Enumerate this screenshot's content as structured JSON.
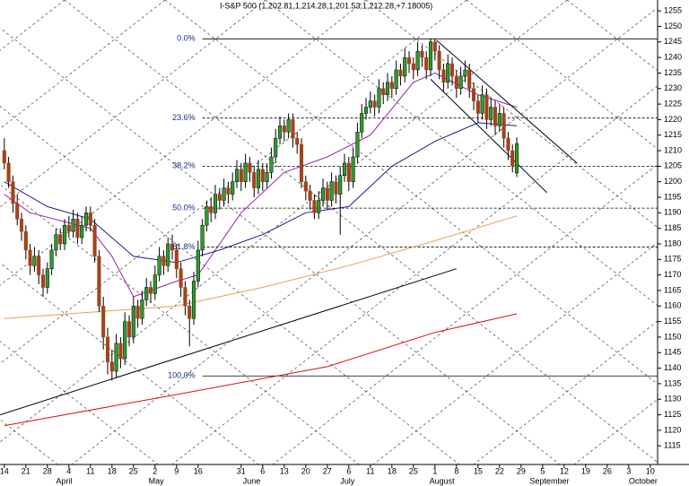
{
  "chart_data": {
    "type": "candlestick",
    "title": "I-S&P 500 (1,202.81,1,214.28,1,201.53,1,212.28,+7.18005)",
    "up_color": "#2e9b2e",
    "down_color": "#a3421b",
    "xlim": [
      -1,
      151.7
    ],
    "ylim": [
      1109,
      1258.5
    ],
    "yticks": [
      1115,
      1120,
      1125,
      1130,
      1135,
      1140,
      1145,
      1150,
      1155,
      1160,
      1165,
      1170,
      1175,
      1180,
      1185,
      1190,
      1195,
      1200,
      1205,
      1210,
      1215,
      1220,
      1225,
      1230,
      1235,
      1240,
      1245,
      1250,
      1255
    ],
    "xticks": [
      {
        "value": 0,
        "label": "14"
      },
      {
        "value": 5,
        "label": "21"
      },
      {
        "value": 10,
        "label": "28"
      },
      {
        "value": 15,
        "label": "4"
      },
      {
        "value": 20,
        "label": "11"
      },
      {
        "value": 25,
        "label": "18"
      },
      {
        "value": 30,
        "label": "25"
      },
      {
        "value": 35,
        "label": "2"
      },
      {
        "value": 40,
        "label": "9"
      },
      {
        "value": 45,
        "label": "16"
      },
      {
        "value": 55,
        "label": "31"
      },
      {
        "value": 60,
        "label": "6"
      },
      {
        "value": 65,
        "label": "13"
      },
      {
        "value": 70,
        "label": "20"
      },
      {
        "value": 75,
        "label": "27"
      },
      {
        "value": 80,
        "label": "6"
      },
      {
        "value": 85,
        "label": "11"
      },
      {
        "value": 90,
        "label": "18"
      },
      {
        "value": 95,
        "label": "25"
      },
      {
        "value": 100,
        "label": "1"
      },
      {
        "value": 105,
        "label": "8"
      },
      {
        "value": 110,
        "label": "15"
      },
      {
        "value": 115,
        "label": "22"
      },
      {
        "value": 120,
        "label": "29"
      },
      {
        "value": 125,
        "label": "5"
      },
      {
        "value": 130,
        "label": "12"
      },
      {
        "value": 135,
        "label": "19"
      },
      {
        "value": 140,
        "label": "26"
      },
      {
        "value": 145,
        "label": "3"
      },
      {
        "value": 150,
        "label": "10"
      }
    ],
    "months": [
      {
        "value": 12,
        "label": "April"
      },
      {
        "value": 33.5,
        "label": "May"
      },
      {
        "value": 55.4,
        "label": "June"
      },
      {
        "value": 78,
        "label": "July"
      },
      {
        "value": 98.7,
        "label": "August"
      },
      {
        "value": 122,
        "label": "September"
      },
      {
        "value": 145,
        "label": "October"
      }
    ],
    "x": [
      0,
      1,
      2,
      3,
      4,
      5,
      6,
      7,
      8,
      9,
      10,
      11,
      12,
      13,
      14,
      15,
      16,
      17,
      18,
      19,
      20,
      21,
      22,
      23,
      24,
      25,
      26,
      27,
      28,
      29,
      30,
      31,
      32,
      33,
      34,
      35,
      36,
      37,
      38,
      39,
      40,
      41,
      42,
      43,
      44,
      45,
      46,
      47,
      48,
      49,
      50,
      51,
      52,
      53,
      54,
      55,
      56,
      57,
      58,
      59,
      60,
      61,
      62,
      63,
      64,
      65,
      66,
      67,
      68,
      69,
      70,
      71,
      72,
      73,
      74,
      75,
      76,
      77,
      78,
      79,
      80,
      81,
      82,
      83,
      84,
      85,
      86,
      87,
      88,
      89,
      90,
      91,
      92,
      93,
      94,
      95,
      96,
      97,
      98,
      99,
      100,
      101,
      102,
      103,
      104,
      105,
      106,
      107,
      108,
      109,
      110,
      111,
      112,
      113,
      114,
      115,
      116,
      117,
      118,
      119
    ],
    "ohlc": [
      [
        1210,
        1214,
        1204,
        1206
      ],
      [
        1206,
        1208,
        1198,
        1200
      ],
      [
        1200,
        1202,
        1190,
        1193
      ],
      [
        1193,
        1196,
        1186,
        1188
      ],
      [
        1188,
        1190,
        1181,
        1184
      ],
      [
        1184,
        1186,
        1175,
        1178
      ],
      [
        1178,
        1180,
        1170,
        1173
      ],
      [
        1173,
        1179,
        1171,
        1176
      ],
      [
        1176,
        1178,
        1167,
        1170
      ],
      [
        1170,
        1172,
        1163,
        1166
      ],
      [
        1166,
        1174,
        1164,
        1172
      ],
      [
        1172,
        1180,
        1170,
        1178
      ],
      [
        1178,
        1185,
        1176,
        1183
      ],
      [
        1183,
        1185,
        1178,
        1180
      ],
      [
        1180,
        1188,
        1178,
        1186
      ],
      [
        1186,
        1189,
        1182,
        1184
      ],
      [
        1184,
        1191,
        1182,
        1188
      ],
      [
        1188,
        1190,
        1180,
        1182
      ],
      [
        1182,
        1189,
        1180,
        1186
      ],
      [
        1186,
        1192,
        1184,
        1190
      ],
      [
        1190,
        1192,
        1184,
        1186
      ],
      [
        1186,
        1188,
        1174,
        1176
      ],
      [
        1176,
        1178,
        1158,
        1160
      ],
      [
        1160,
        1163,
        1146,
        1150
      ],
      [
        1150,
        1153,
        1138,
        1142
      ],
      [
        1142,
        1146,
        1136,
        1139
      ],
      [
        1139,
        1151,
        1137,
        1148
      ],
      [
        1148,
        1150,
        1140,
        1143
      ],
      [
        1143,
        1158,
        1141,
        1155
      ],
      [
        1155,
        1157,
        1147,
        1150
      ],
      [
        1150,
        1163,
        1148,
        1160
      ],
      [
        1160,
        1162,
        1153,
        1156
      ],
      [
        1156,
        1165,
        1154,
        1162
      ],
      [
        1162,
        1169,
        1160,
        1166
      ],
      [
        1166,
        1168,
        1161,
        1164
      ],
      [
        1164,
        1173,
        1162,
        1170
      ],
      [
        1170,
        1179,
        1168,
        1176
      ],
      [
        1176,
        1178,
        1170,
        1173
      ],
      [
        1173,
        1182,
        1171,
        1180
      ],
      [
        1180,
        1183,
        1175,
        1178
      ],
      [
        1178,
        1180,
        1169,
        1172
      ],
      [
        1172,
        1174,
        1163,
        1166
      ],
      [
        1166,
        1168,
        1157,
        1160
      ],
      [
        1160,
        1162,
        1147,
        1156
      ],
      [
        1156,
        1171,
        1154,
        1168
      ],
      [
        1168,
        1181,
        1166,
        1178
      ],
      [
        1178,
        1188,
        1176,
        1186
      ],
      [
        1186,
        1194,
        1184,
        1192
      ],
      [
        1192,
        1195,
        1187,
        1190
      ],
      [
        1190,
        1199,
        1188,
        1196
      ],
      [
        1196,
        1198,
        1191,
        1194
      ],
      [
        1194,
        1201,
        1192,
        1198
      ],
      [
        1198,
        1200,
        1193,
        1196
      ],
      [
        1196,
        1203,
        1194,
        1200
      ],
      [
        1200,
        1207,
        1198,
        1204
      ],
      [
        1204,
        1206,
        1197,
        1200
      ],
      [
        1200,
        1209,
        1198,
        1206
      ],
      [
        1206,
        1208,
        1200,
        1203
      ],
      [
        1203,
        1205,
        1195,
        1198
      ],
      [
        1198,
        1207,
        1196,
        1204
      ],
      [
        1204,
        1206,
        1197,
        1200
      ],
      [
        1200,
        1206,
        1198,
        1203
      ],
      [
        1203,
        1211,
        1201,
        1208
      ],
      [
        1208,
        1217,
        1206,
        1214
      ],
      [
        1214,
        1221,
        1212,
        1218
      ],
      [
        1218,
        1220,
        1213,
        1216
      ],
      [
        1216,
        1222,
        1214,
        1220
      ],
      [
        1220,
        1222,
        1211,
        1214
      ],
      [
        1214,
        1216,
        1209,
        1212
      ],
      [
        1212,
        1214,
        1198,
        1200
      ],
      [
        1200,
        1202,
        1194,
        1197
      ],
      [
        1197,
        1199,
        1191,
        1194
      ],
      [
        1194,
        1196,
        1188,
        1190
      ],
      [
        1190,
        1197,
        1188,
        1194
      ],
      [
        1194,
        1201,
        1192,
        1198
      ],
      [
        1198,
        1200,
        1191,
        1194
      ],
      [
        1194,
        1203,
        1192,
        1200
      ],
      [
        1200,
        1202,
        1193,
        1196
      ],
      [
        1196,
        1205,
        1183,
        1202
      ],
      [
        1202,
        1209,
        1200,
        1206
      ],
      [
        1206,
        1208,
        1197,
        1200
      ],
      [
        1200,
        1211,
        1198,
        1208
      ],
      [
        1208,
        1219,
        1206,
        1216
      ],
      [
        1216,
        1225,
        1214,
        1222
      ],
      [
        1222,
        1227,
        1220,
        1224
      ],
      [
        1224,
        1229,
        1222,
        1226
      ],
      [
        1226,
        1228,
        1221,
        1224
      ],
      [
        1224,
        1233,
        1222,
        1230
      ],
      [
        1230,
        1232,
        1225,
        1228
      ],
      [
        1228,
        1235,
        1226,
        1232
      ],
      [
        1232,
        1234,
        1227,
        1230
      ],
      [
        1230,
        1239,
        1228,
        1236
      ],
      [
        1236,
        1238,
        1231,
        1234
      ],
      [
        1234,
        1243,
        1232,
        1240
      ],
      [
        1240,
        1242,
        1235,
        1238
      ],
      [
        1238,
        1240,
        1233,
        1236
      ],
      [
        1236,
        1245,
        1234,
        1242
      ],
      [
        1242,
        1244,
        1237,
        1240
      ],
      [
        1240,
        1242,
        1233,
        1236
      ],
      [
        1236,
        1246,
        1234,
        1245
      ],
      [
        1245,
        1246,
        1239,
        1242
      ],
      [
        1242,
        1244,
        1233,
        1236
      ],
      [
        1236,
        1238,
        1229,
        1232
      ],
      [
        1232,
        1241,
        1230,
        1238
      ],
      [
        1238,
        1240,
        1231,
        1234
      ],
      [
        1234,
        1236,
        1227,
        1230
      ],
      [
        1230,
        1237,
        1228,
        1234
      ],
      [
        1234,
        1239,
        1232,
        1236
      ],
      [
        1236,
        1238,
        1227,
        1230
      ],
      [
        1230,
        1232,
        1223,
        1226
      ],
      [
        1226,
        1228,
        1219,
        1222
      ],
      [
        1222,
        1231,
        1220,
        1228
      ],
      [
        1228,
        1230,
        1217,
        1220
      ],
      [
        1220,
        1227,
        1218,
        1224
      ],
      [
        1224,
        1226,
        1215,
        1218
      ],
      [
        1218,
        1225,
        1216,
        1222
      ],
      [
        1222,
        1224,
        1211,
        1214
      ],
      [
        1214,
        1216,
        1207,
        1210
      ],
      [
        1210,
        1212,
        1203,
        1205.1
      ],
      [
        1202.81,
        1214.28,
        1201.53,
        1212.28
      ]
    ],
    "series": [
      {
        "color": "#9b1fb0",
        "x": [
          0,
          6,
          20,
          25,
          30,
          40,
          45,
          55,
          65,
          75,
          85,
          95,
          100,
          110,
          119
        ],
        "values": [
          1196,
          1190,
          1185,
          1176,
          1163,
          1168,
          1170,
          1190,
          1203,
          1208,
          1215,
          1232,
          1235,
          1228,
          1224
        ]
      },
      {
        "color": "#1c1c8c",
        "x": [
          0,
          10,
          20,
          30,
          40,
          50,
          60,
          70,
          80,
          90,
          100,
          110,
          119
        ],
        "values": [
          1200,
          1192,
          1188,
          1176,
          1174,
          1178,
          1183,
          1190,
          1192,
          1205,
          1213,
          1219,
          1218
        ]
      },
      {
        "color": "#f0a050",
        "x": [
          0,
          40,
          60,
          80,
          100,
          119
        ],
        "values": [
          1156,
          1160,
          1166,
          1173,
          1181,
          1189
        ]
      },
      {
        "color": "#e01010",
        "x": [
          0,
          40,
          75,
          100,
          119
        ],
        "values": [
          1121.5,
          1131.5,
          1140.5,
          1151.5,
          1157.5
        ]
      }
    ],
    "trendlines": [
      {
        "color": "#000000",
        "x": [
          -1,
          105
        ],
        "values": [
          1125,
          1172
        ]
      },
      {
        "color": "#000000",
        "x": [
          100.4,
          133
        ],
        "values": [
          1245.5,
          1206
        ]
      },
      {
        "color": "#000000",
        "x": [
          99,
          126
        ],
        "values": [
          1233,
          1196.5
        ]
      }
    ],
    "fib_from": 46,
    "fibonacci": [
      {
        "label": "0.0%",
        "value": 1246
      },
      {
        "label": "23.6%",
        "value": 1220.5
      },
      {
        "label": "38.2%",
        "value": 1205
      },
      {
        "label": "50.0%",
        "value": 1191.5
      },
      {
        "label": "61.8%",
        "value": 1179
      },
      {
        "label": "100.0%",
        "value": 1137.5
      }
    ]
  }
}
